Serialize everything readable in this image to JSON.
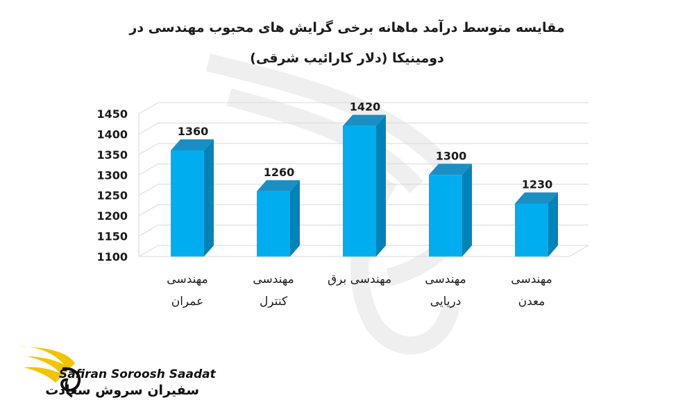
{
  "chart_data": {
    "type": "bar",
    "title": "مقایسه متوسط درآمد ماهانه برخی گرایش های محبوب مهندسی در دومینیکا (دلار کارائیب شرقی)",
    "categories": [
      [
        "مهندسی",
        "عمران"
      ],
      [
        "مهندسی",
        "کنترل"
      ],
      [
        "مهندسی برق"
      ],
      [
        "مهندسی",
        "دریایی"
      ],
      [
        "مهندسی",
        "معدن"
      ]
    ],
    "values": [
      1360,
      1260,
      1420,
      1300,
      1230
    ],
    "data_labels": [
      "1360",
      "1260",
      "1420",
      "1300",
      "1230"
    ],
    "ylim": [
      1100,
      1450
    ],
    "yticks": [
      "1100",
      "1150",
      "1200",
      "1250",
      "1300",
      "1350",
      "1400",
      "1450"
    ],
    "grid": true,
    "style": "3d-column",
    "colors": {
      "bar_front": "#00aeef",
      "bar_side": "#0083b8",
      "bar_top": "#1b8fc4",
      "grid": "#d9d9d9"
    }
  },
  "brand": {
    "latin": "Safiran Soroosh Saadat",
    "persian": "سفیران سروش سعادت",
    "colors": {
      "wing": "#f2c400",
      "text": "#111111"
    }
  }
}
